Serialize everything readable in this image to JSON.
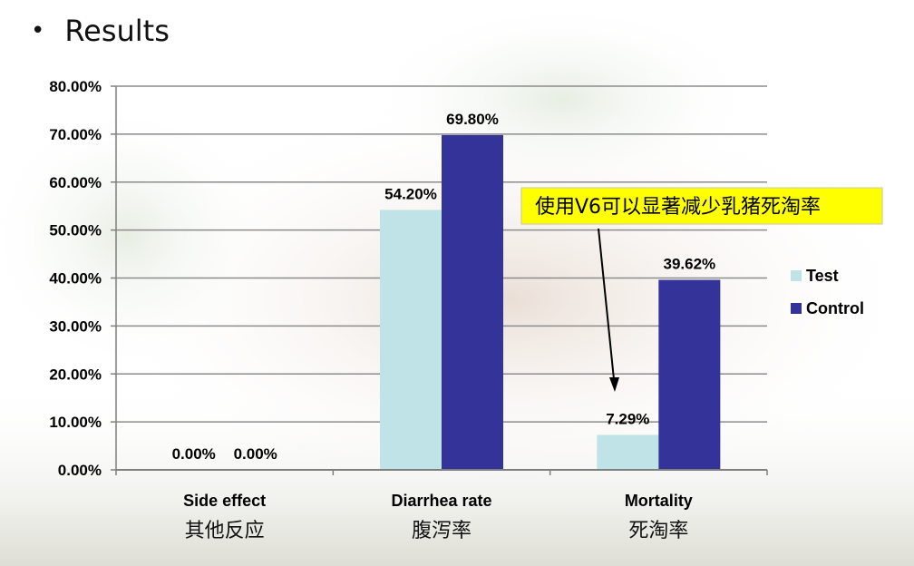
{
  "slide": {
    "bullet": "•",
    "heading": "Results"
  },
  "chart_data": {
    "type": "bar",
    "categories": [
      "Side effect",
      "Diarrhea rate",
      "Mortality"
    ],
    "category_subtitles": [
      "其他反应",
      "腹泻率",
      "死淘率"
    ],
    "series": [
      {
        "name": "Test",
        "values": [
          0.0,
          54.2,
          7.29
        ],
        "labels": [
          "0.00%",
          "54.20%",
          "7.29%"
        ],
        "color": "#bfe3e6"
      },
      {
        "name": "Control",
        "values": [
          0.0,
          69.8,
          39.62
        ],
        "labels": [
          "0.00%",
          "69.80%",
          "39.62%"
        ],
        "color": "#333399"
      }
    ],
    "ylim": [
      0,
      80
    ],
    "yticks": [
      "0.00%",
      "10.00%",
      "20.00%",
      "30.00%",
      "40.00%",
      "50.00%",
      "60.00%",
      "70.00%",
      "80.00%"
    ],
    "grid": true,
    "legend": "right",
    "annotation": {
      "text": "使用V6可以显著减少乳猪死淘率",
      "background": "#ffff00",
      "points_to": "Mortality – Test"
    }
  }
}
